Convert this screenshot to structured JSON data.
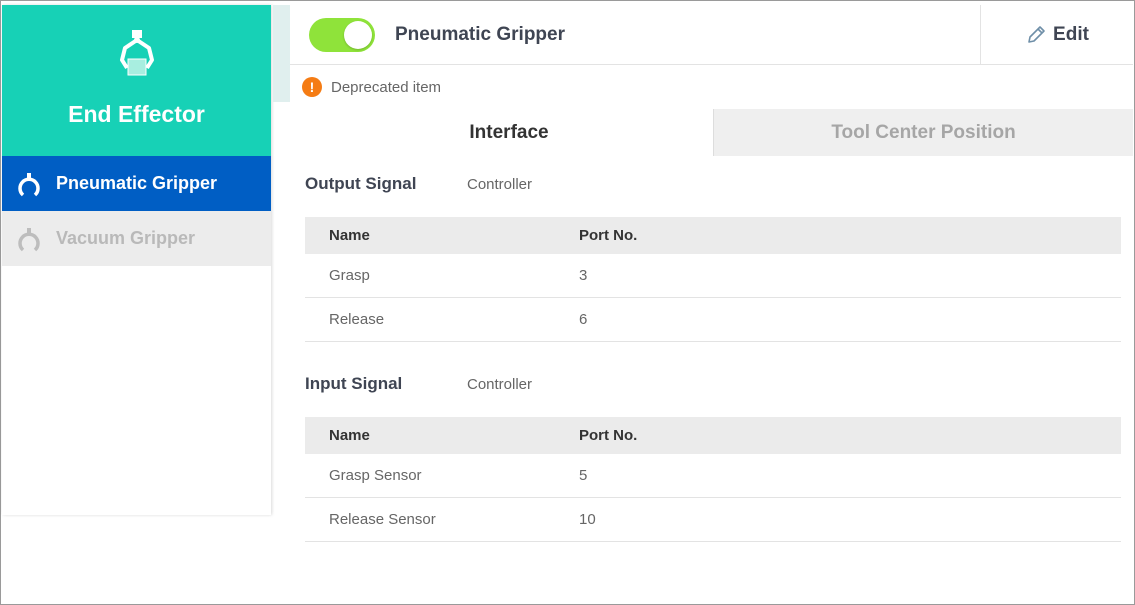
{
  "sidebar": {
    "title": "End Effector",
    "icon": "gripper-icon",
    "items": [
      {
        "label": "Pneumatic Gripper",
        "active": true
      },
      {
        "label": "Vacuum Gripper",
        "active": false
      }
    ]
  },
  "header": {
    "name": "Pneumatic Gripper",
    "enabled": true,
    "edit_label": "Edit"
  },
  "warning": "Deprecated item",
  "tabs": [
    {
      "label": "Interface",
      "active": true
    },
    {
      "label": "Tool Center Position",
      "active": false
    }
  ],
  "output": {
    "title": "Output Signal",
    "source": "Controller",
    "columns": [
      "Name",
      "Port No."
    ],
    "rows": [
      {
        "name": "Grasp",
        "port": "3"
      },
      {
        "name": "Release",
        "port": "6"
      }
    ]
  },
  "input": {
    "title": "Input Signal",
    "source": "Controller",
    "columns": [
      "Name",
      "Port No."
    ],
    "rows": [
      {
        "name": "Grasp Sensor",
        "port": "5"
      },
      {
        "name": "Release Sensor",
        "port": "10"
      }
    ]
  },
  "colors": {
    "accent": "#17d1b6",
    "active": "#005ec4",
    "toggle": "#8fe33a",
    "warning": "#f57c14"
  }
}
